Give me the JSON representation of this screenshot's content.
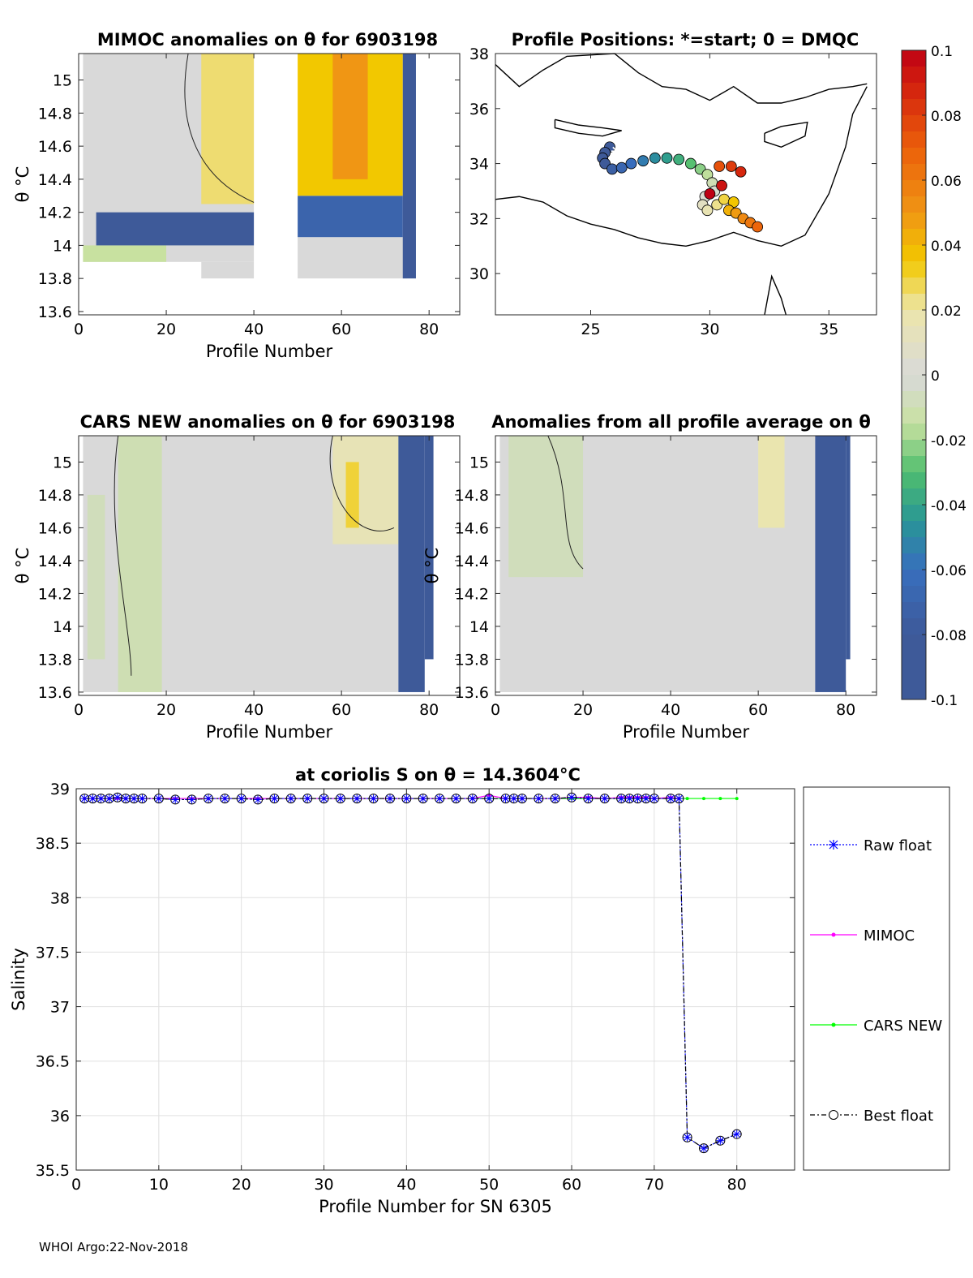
{
  "footer": "WHOI Argo:22-Nov-2018",
  "colors": {
    "raw_float": "#0000ff",
    "mimoc": "#ff00ff",
    "cars_new": "#00ff00",
    "best_float": "#000000",
    "anom_pos": "#f2c800",
    "anom_neg": "#3e5a99",
    "anom_zero": "#d9d9d9"
  },
  "chart_data": [
    {
      "type": "heatmap",
      "title": "MIMOC anomalies on θ  for 6903198",
      "xlabel": "Profile Number",
      "ylabel": "θ °C",
      "xlim": [
        0,
        87
      ],
      "ylim": [
        13.58,
        15.16
      ],
      "xticks": [
        0,
        20,
        40,
        60,
        80
      ],
      "yticks": [
        13.6,
        13.8,
        14,
        14.2,
        14.4,
        14.6,
        14.8,
        15
      ],
      "cells": [
        {
          "x": [
            1,
            40
          ],
          "y": [
            13.9,
            15.16
          ],
          "v": 0.0
        },
        {
          "x": [
            28,
            40
          ],
          "y": [
            14.25,
            15.16
          ],
          "v": 0.025
        },
        {
          "x": [
            1,
            20
          ],
          "y": [
            13.9,
            14.0
          ],
          "v": -0.015
        },
        {
          "x": [
            4,
            40
          ],
          "y": [
            14.0,
            14.2
          ],
          "v": -0.09
        },
        {
          "x": [
            28,
            40
          ],
          "y": [
            13.8,
            13.9
          ],
          "v": 0.0
        },
        {
          "x": [
            50,
            75
          ],
          "y": [
            13.8,
            14.05
          ],
          "v": 0.0
        },
        {
          "x": [
            50,
            74
          ],
          "y": [
            14.05,
            14.3
          ],
          "v": -0.07
        },
        {
          "x": [
            50,
            74
          ],
          "y": [
            14.3,
            15.16
          ],
          "v": 0.035
        },
        {
          "x": [
            58,
            66
          ],
          "y": [
            14.4,
            15.16
          ],
          "v": 0.05
        },
        {
          "x": [
            74,
            77
          ],
          "y": [
            13.8,
            15.16
          ],
          "v": -0.1
        }
      ]
    },
    {
      "type": "scatter",
      "title": "Profile Positions: *=start; 0 = DMQC",
      "xlim": [
        21,
        37
      ],
      "ylim": [
        28.5,
        38
      ],
      "xticks": [
        25,
        30,
        35
      ],
      "yticks": [
        30,
        32,
        34,
        36,
        38
      ],
      "start": {
        "lon": 26.1,
        "lat": 34.45
      },
      "points": [
        {
          "lon": 25.8,
          "lat": 34.6
        },
        {
          "lon": 25.6,
          "lat": 34.4
        },
        {
          "lon": 25.5,
          "lat": 34.2
        },
        {
          "lon": 25.6,
          "lat": 34.0
        },
        {
          "lon": 25.9,
          "lat": 33.8
        },
        {
          "lon": 26.3,
          "lat": 33.85
        },
        {
          "lon": 26.7,
          "lat": 34.0
        },
        {
          "lon": 27.2,
          "lat": 34.1
        },
        {
          "lon": 27.7,
          "lat": 34.2
        },
        {
          "lon": 28.2,
          "lat": 34.2
        },
        {
          "lon": 28.7,
          "lat": 34.15
        },
        {
          "lon": 29.2,
          "lat": 34.0
        },
        {
          "lon": 29.6,
          "lat": 33.8
        },
        {
          "lon": 29.9,
          "lat": 33.6
        },
        {
          "lon": 30.1,
          "lat": 33.3
        },
        {
          "lon": 30.2,
          "lat": 33.0
        },
        {
          "lon": 29.8,
          "lat": 32.8
        },
        {
          "lon": 29.7,
          "lat": 32.5
        },
        {
          "lon": 29.9,
          "lat": 32.3
        },
        {
          "lon": 30.3,
          "lat": 32.5
        },
        {
          "lon": 30.6,
          "lat": 32.7
        },
        {
          "lon": 31.0,
          "lat": 32.6
        },
        {
          "lon": 30.8,
          "lat": 32.3
        },
        {
          "lon": 31.1,
          "lat": 32.2
        },
        {
          "lon": 31.4,
          "lat": 32.0
        },
        {
          "lon": 31.7,
          "lat": 31.85
        },
        {
          "lon": 32.0,
          "lat": 31.7
        },
        {
          "lon": 30.4,
          "lat": 33.9
        },
        {
          "lon": 30.9,
          "lat": 33.9
        },
        {
          "lon": 31.3,
          "lat": 33.7
        },
        {
          "lon": 30.5,
          "lat": 33.2
        },
        {
          "lon": 30.0,
          "lat": 32.9
        }
      ]
    },
    {
      "type": "heatmap",
      "title": "CARS NEW anomalies on θ for 6903198",
      "xlabel": "Profile Number",
      "ylabel": "θ °C",
      "xlim": [
        0,
        87
      ],
      "ylim": [
        13.58,
        15.16
      ],
      "xticks": [
        0,
        20,
        40,
        60,
        80
      ],
      "yticks": [
        13.6,
        13.8,
        14,
        14.2,
        14.4,
        14.6,
        14.8,
        15
      ],
      "cells": [
        {
          "x": [
            1,
            73
          ],
          "y": [
            13.6,
            15.16
          ],
          "v": 0.0
        },
        {
          "x": [
            9,
            19
          ],
          "y": [
            13.6,
            15.16
          ],
          "v": -0.01
        },
        {
          "x": [
            2,
            6
          ],
          "y": [
            13.8,
            14.8
          ],
          "v": -0.008
        },
        {
          "x": [
            58,
            73
          ],
          "y": [
            14.5,
            15.16
          ],
          "v": 0.015
        },
        {
          "x": [
            61,
            64
          ],
          "y": [
            14.6,
            15.0
          ],
          "v": 0.03
        },
        {
          "x": [
            73,
            79
          ],
          "y": [
            13.6,
            15.16
          ],
          "v": -0.1
        },
        {
          "x": [
            79,
            81
          ],
          "y": [
            13.8,
            15.16
          ],
          "v": -0.1
        }
      ]
    },
    {
      "type": "heatmap",
      "title": "Anomalies from all profile average on θ",
      "xlabel": "Profile Number",
      "ylabel": "θ °C",
      "xlim": [
        0,
        87
      ],
      "ylim": [
        13.58,
        15.16
      ],
      "xticks": [
        0,
        20,
        40,
        60,
        80
      ],
      "yticks": [
        13.6,
        13.8,
        14,
        14.2,
        14.4,
        14.6,
        14.8,
        15
      ],
      "cells": [
        {
          "x": [
            1,
            73
          ],
          "y": [
            13.6,
            15.16
          ],
          "v": 0.0
        },
        {
          "x": [
            3,
            20
          ],
          "y": [
            14.3,
            15.16
          ],
          "v": -0.008
        },
        {
          "x": [
            60,
            66
          ],
          "y": [
            14.6,
            15.16
          ],
          "v": 0.018
        },
        {
          "x": [
            73,
            80
          ],
          "y": [
            13.6,
            15.16
          ],
          "v": -0.1
        },
        {
          "x": [
            80,
            81
          ],
          "y": [
            13.8,
            15.16
          ],
          "v": -0.1
        }
      ]
    },
    {
      "type": "colorbar",
      "ticks": [
        0.1,
        0.08,
        0.06,
        0.04,
        0.02,
        0,
        -0.02,
        -0.04,
        -0.06,
        -0.08,
        -0.1
      ],
      "tick_labels": [
        "0.1",
        "0.08",
        "0.06",
        "0.04",
        "0.02",
        "0",
        "-0.02",
        "-0.04",
        "-0.06",
        "-0.08",
        "-0.1"
      ]
    },
    {
      "type": "line",
      "title": "at coriolis S on θ = 14.3604°C",
      "xlabel": "Profile Number for SN 6305",
      "ylabel": "Salinity",
      "xlim": [
        0,
        87
      ],
      "ylim": [
        35.5,
        39
      ],
      "xticks": [
        0,
        10,
        20,
        30,
        40,
        50,
        60,
        70,
        80
      ],
      "yticks": [
        35.5,
        36,
        36.5,
        37,
        37.5,
        38,
        38.5,
        39
      ],
      "ytick_labels": [
        "35.5",
        "36",
        "36.5",
        "37",
        "37.5",
        "38",
        "38.5",
        "39"
      ],
      "x": [
        1,
        2,
        3,
        4,
        5,
        6,
        7,
        8,
        10,
        12,
        14,
        16,
        18,
        20,
        22,
        24,
        26,
        28,
        30,
        32,
        34,
        36,
        38,
        40,
        42,
        44,
        46,
        48,
        50,
        52,
        53,
        54,
        56,
        58,
        60,
        62,
        64,
        66,
        67,
        68,
        69,
        70,
        72,
        73,
        74,
        76,
        78,
        80
      ],
      "series": [
        {
          "name": "Raw float",
          "values": [
            38.91,
            38.91,
            38.91,
            38.91,
            38.92,
            38.91,
            38.91,
            38.91,
            38.91,
            38.9,
            38.9,
            38.91,
            38.91,
            38.91,
            38.9,
            38.91,
            38.91,
            38.91,
            38.91,
            38.91,
            38.91,
            38.91,
            38.91,
            38.91,
            38.91,
            38.91,
            38.91,
            38.91,
            38.91,
            38.91,
            38.91,
            38.91,
            38.91,
            38.91,
            38.92,
            38.91,
            38.91,
            38.91,
            38.91,
            38.91,
            38.91,
            38.91,
            38.91,
            38.91,
            35.8,
            35.7,
            35.77,
            35.83
          ]
        },
        {
          "name": "MIMOC",
          "values": [
            38.91,
            38.91,
            38.91,
            38.91,
            38.91,
            38.91,
            38.91,
            38.91,
            38.91,
            38.91,
            38.91,
            38.91,
            38.91,
            38.91,
            38.91,
            38.91,
            38.91,
            38.91,
            38.91,
            38.91,
            38.91,
            38.91,
            38.91,
            38.91,
            38.91,
            38.91,
            38.91,
            38.91,
            38.94,
            38.91,
            38.91,
            38.91,
            38.91,
            38.91,
            38.92,
            38.92,
            38.91,
            38.92,
            38.92,
            38.92,
            38.92,
            38.91,
            38.92,
            38.91,
            null,
            null,
            null,
            null
          ]
        },
        {
          "name": "CARS NEW",
          "values": [
            38.91,
            38.91,
            38.91,
            38.91,
            38.91,
            38.91,
            38.91,
            38.91,
            38.91,
            38.91,
            38.91,
            38.91,
            38.91,
            38.91,
            38.91,
            38.91,
            38.91,
            38.91,
            38.91,
            38.91,
            38.91,
            38.91,
            38.91,
            38.91,
            38.91,
            38.91,
            38.91,
            38.91,
            38.91,
            38.91,
            38.91,
            38.91,
            38.91,
            38.91,
            38.91,
            38.91,
            38.91,
            38.91,
            38.91,
            38.91,
            38.91,
            38.91,
            38.91,
            38.91,
            38.91,
            38.91,
            38.91,
            38.91
          ]
        },
        {
          "name": "Best float",
          "values": [
            38.91,
            38.91,
            38.91,
            38.91,
            38.92,
            38.91,
            38.91,
            38.91,
            38.91,
            38.9,
            38.9,
            38.91,
            38.91,
            38.91,
            38.9,
            38.91,
            38.91,
            38.91,
            38.91,
            38.91,
            38.91,
            38.91,
            38.91,
            38.91,
            38.91,
            38.91,
            38.91,
            38.91,
            38.91,
            38.91,
            38.91,
            38.91,
            38.91,
            38.91,
            38.92,
            38.91,
            38.91,
            38.91,
            38.91,
            38.91,
            38.91,
            38.91,
            38.91,
            38.91,
            35.8,
            35.7,
            35.77,
            35.83
          ]
        }
      ],
      "grid": true,
      "legend": "right"
    }
  ]
}
